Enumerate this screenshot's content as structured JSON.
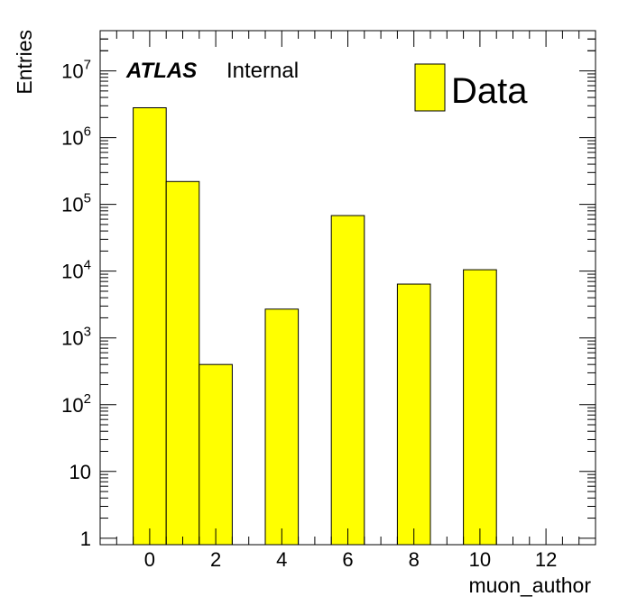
{
  "chart_data": {
    "type": "bar",
    "style": "histogram",
    "xlabel": "muon_author",
    "ylabel": "Entries",
    "log_y": true,
    "xlim": [
      -1.5,
      13.5
    ],
    "ylim": [
      0.8,
      40000000
    ],
    "bin_width": 1,
    "bins": [
      {
        "x": 0,
        "value": 2800000
      },
      {
        "x": 1,
        "value": 220000
      },
      {
        "x": 2,
        "value": 400
      },
      {
        "x": 3,
        "value": 0
      },
      {
        "x": 4,
        "value": 2700
      },
      {
        "x": 5,
        "value": 0
      },
      {
        "x": 6,
        "value": 68000
      },
      {
        "x": 7,
        "value": 0
      },
      {
        "x": 8,
        "value": 6400
      },
      {
        "x": 9,
        "value": 0
      },
      {
        "x": 10,
        "value": 10500
      },
      {
        "x": 11,
        "value": 0
      },
      {
        "x": 12,
        "value": 0
      }
    ],
    "x_tick_labels": [
      "0",
      "2",
      "4",
      "6",
      "8",
      "10",
      "12"
    ],
    "y_tick_labels": [
      {
        "value": 1,
        "base": "1",
        "exp": ""
      },
      {
        "value": 10,
        "base": "10",
        "exp": ""
      },
      {
        "value": 100,
        "base": "10",
        "exp": "2"
      },
      {
        "value": 1000,
        "base": "10",
        "exp": "3"
      },
      {
        "value": 10000,
        "base": "10",
        "exp": "4"
      },
      {
        "value": 100000,
        "base": "10",
        "exp": "5"
      },
      {
        "value": 1000000,
        "base": "10",
        "exp": "6"
      },
      {
        "value": 10000000,
        "base": "10",
        "exp": "7"
      }
    ],
    "legend": {
      "position": "top-right",
      "entries": [
        {
          "label": "Data",
          "color": "#ffff00"
        }
      ]
    },
    "bar_color": "#ffff00",
    "bar_edge_color": "#000000",
    "annotation": {
      "atlas": "ATLAS",
      "status": "Internal"
    }
  }
}
